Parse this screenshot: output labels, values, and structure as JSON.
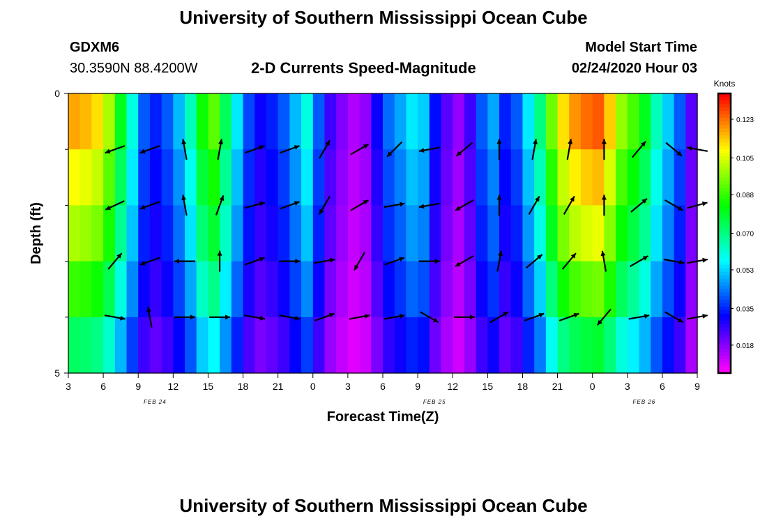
{
  "header": {
    "title_top": "University of Southern Mississippi Ocean Cube",
    "title_bottom": "University of Southern Mississippi Ocean Cube",
    "station_id": "GDXM6",
    "coordinates": "30.3590N 88.4200W",
    "plot_title": "2-D Currents Speed-Magnitude",
    "model_label": "Model Start Time",
    "model_time": "02/24/2020 Hour 03"
  },
  "chart_data": {
    "type": "heatmap",
    "title": "2-D Currents Speed-Magnitude",
    "xlabel": "Forecast Time(Z)",
    "ylabel": "Depth (ft)",
    "y_ticks": [
      "0",
      "5"
    ],
    "ylim": [
      0,
      5
    ],
    "x_ticks": [
      "3",
      "6",
      "9",
      "12",
      "15",
      "18",
      "21",
      "0",
      "3",
      "6",
      "9",
      "12",
      "15",
      "18",
      "21",
      "0",
      "3",
      "6",
      "9"
    ],
    "x_tick_hours": [
      0,
      3,
      6,
      9,
      12,
      15,
      18,
      21,
      24,
      27,
      30,
      33,
      36,
      39,
      42,
      45,
      48,
      51,
      54
    ],
    "date_labels": [
      {
        "label": "FEB 24",
        "hour": 9
      },
      {
        "label": "FEB 25",
        "hour": 33
      },
      {
        "label": "FEB 26",
        "hour": 51
      }
    ],
    "colorbar": {
      "unit": "Knots",
      "ticks": [
        "0.123",
        "0.105",
        "0.088",
        "0.070",
        "0.053",
        "0.035",
        "0.018"
      ],
      "tick_values": [
        0.123,
        0.105,
        0.088,
        0.07,
        0.053,
        0.035,
        0.018
      ],
      "range": [
        0.005,
        0.135
      ]
    },
    "profile_hours": 54,
    "profile_speed": [
      0.118,
      0.116,
      0.112,
      0.1,
      0.08,
      0.06,
      0.04,
      0.034,
      0.04,
      0.05,
      0.064,
      0.084,
      0.092,
      0.074,
      0.055,
      0.038,
      0.03,
      0.034,
      0.04,
      0.05,
      0.06,
      0.04,
      0.025,
      0.018,
      0.013,
      0.016,
      0.03,
      0.042,
      0.048,
      0.055,
      0.052,
      0.032,
      0.022,
      0.016,
      0.025,
      0.04,
      0.048,
      0.034,
      0.04,
      0.055,
      0.07,
      0.094,
      0.112,
      0.12,
      0.124,
      0.126,
      0.114,
      0.098,
      0.09,
      0.08,
      0.064,
      0.052,
      0.04,
      0.022,
      0.013
    ],
    "depth_factor": [
      1.0,
      0.92,
      0.85,
      0.75,
      0.62
    ],
    "arrow_layers": [
      {
        "depth": 1,
        "angles": [
          -160,
          -160,
          100,
          80,
          20,
          20,
          60,
          30,
          -135,
          -170,
          -140,
          90,
          80,
          80,
          90,
          50,
          -40,
          170
        ]
      },
      {
        "depth": 2,
        "angles": [
          -155,
          -160,
          100,
          70,
          15,
          20,
          -120,
          30,
          10,
          -170,
          -150,
          90,
          60,
          60,
          90,
          40,
          -30,
          15
        ]
      },
      {
        "depth": 3,
        "angles": [
          50,
          -160,
          180,
          90,
          20,
          0,
          10,
          -120,
          20,
          0,
          -150,
          80,
          40,
          50,
          100,
          30,
          -10,
          10
        ]
      },
      {
        "depth": 4,
        "angles": [
          -10,
          100,
          0,
          0,
          -10,
          -10,
          20,
          10,
          10,
          -30,
          0,
          30,
          20,
          20,
          -130,
          10,
          -30,
          10
        ]
      }
    ],
    "arrow_hours": [
      4,
      7,
      10,
      13,
      16,
      19,
      22,
      25,
      28,
      31,
      34,
      37,
      40,
      43,
      46,
      49,
      52,
      54
    ]
  }
}
